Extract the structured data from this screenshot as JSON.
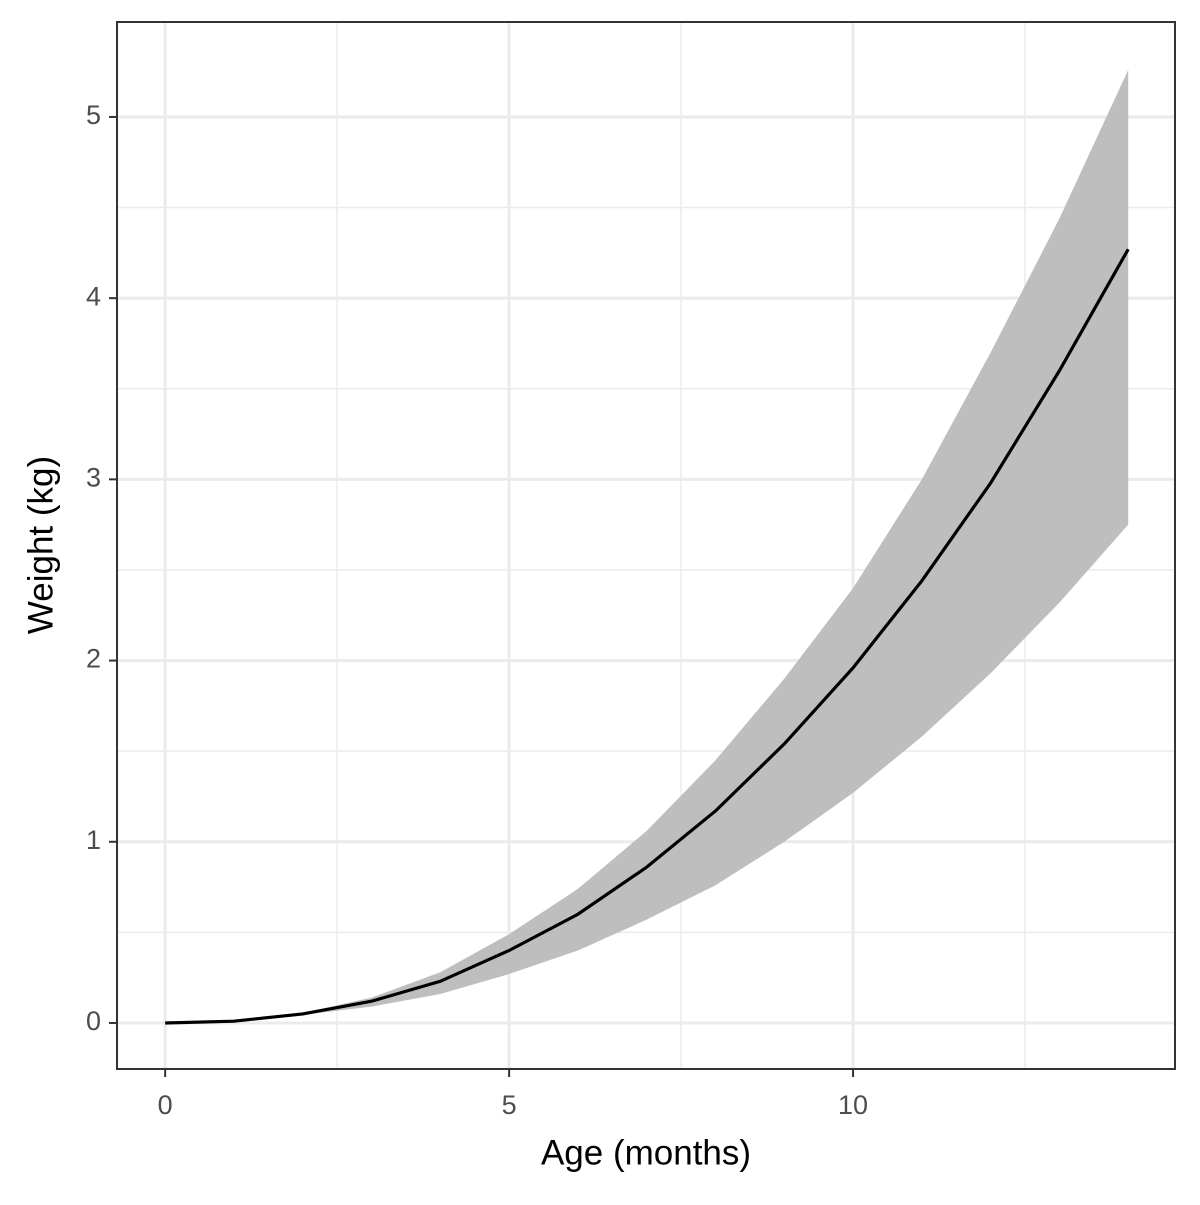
{
  "chart_data": {
    "type": "line",
    "x_label": "Age (months)",
    "y_label": "Weight (kg)",
    "x": [
      0,
      1,
      2,
      3,
      4,
      5,
      6,
      7,
      8,
      9,
      10,
      11,
      12,
      13,
      14
    ],
    "values": [
      0,
      0.01,
      0.05,
      0.12,
      0.23,
      0.4,
      0.6,
      0.86,
      1.17,
      1.54,
      1.96,
      2.44,
      2.98,
      3.6,
      4.27
    ],
    "upper": [
      0,
      0.01,
      0.055,
      0.14,
      0.28,
      0.49,
      0.74,
      1.06,
      1.45,
      1.9,
      2.4,
      3.0,
      3.7,
      4.44,
      5.26
    ],
    "lower": [
      0,
      0.01,
      0.045,
      0.09,
      0.16,
      0.27,
      0.4,
      0.57,
      0.76,
      1.0,
      1.27,
      1.58,
      1.93,
      2.32,
      2.75
    ],
    "color": "#000000",
    "band_color": "#bebebe",
    "xlim": [
      -0.7,
      14.68
    ],
    "ylim": [
      -0.254,
      5.524
    ],
    "xticks": [
      0,
      5,
      10
    ],
    "yticks": [
      0,
      1,
      2,
      3,
      4,
      5
    ],
    "x_minor_breaks": [
      2.5,
      7.5,
      12.5
    ],
    "y_minor_breaks": [
      0.5,
      1.5,
      2.5,
      3.5,
      4.5
    ],
    "grid": true
  }
}
